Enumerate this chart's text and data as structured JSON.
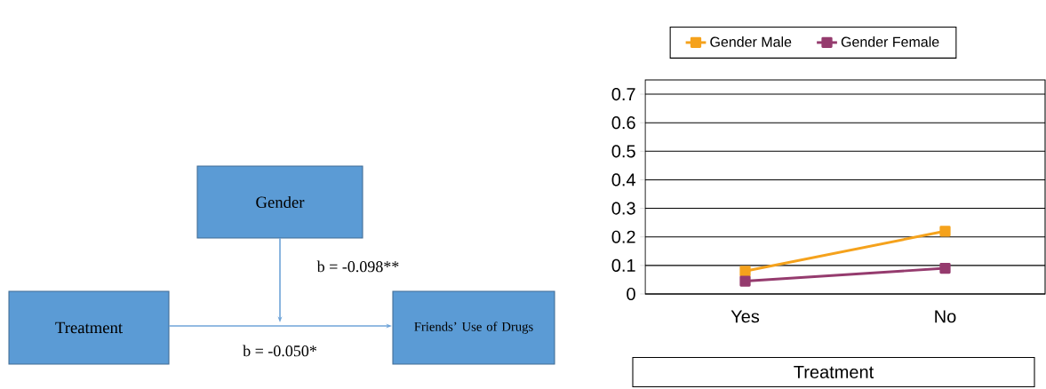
{
  "chart_data": [
    {
      "type": "other",
      "annotations": [
        "Gender",
        "Treatment",
        "Friends’ Use of Drugs",
        "b =  -0.098**",
        "b =  -0.050*"
      ]
    },
    {
      "type": "line",
      "categories": [
        "Yes",
        "No"
      ],
      "xlabel": "Treatment",
      "series": [
        {
          "name": "Gender Male",
          "color": "#f5a21c",
          "values": [
            0.08,
            0.22
          ]
        },
        {
          "name": "Gender Female",
          "color": "#953b6e",
          "values": [
            0.045,
            0.09
          ]
        }
      ],
      "ylim": [
        0,
        0.75
      ],
      "yticks": [
        0,
        0.1,
        0.2,
        0.3,
        0.4,
        0.5,
        0.6,
        0.7
      ],
      "grid": "y",
      "legend": "top",
      "marker": "square",
      "line_style": "solid"
    }
  ]
}
